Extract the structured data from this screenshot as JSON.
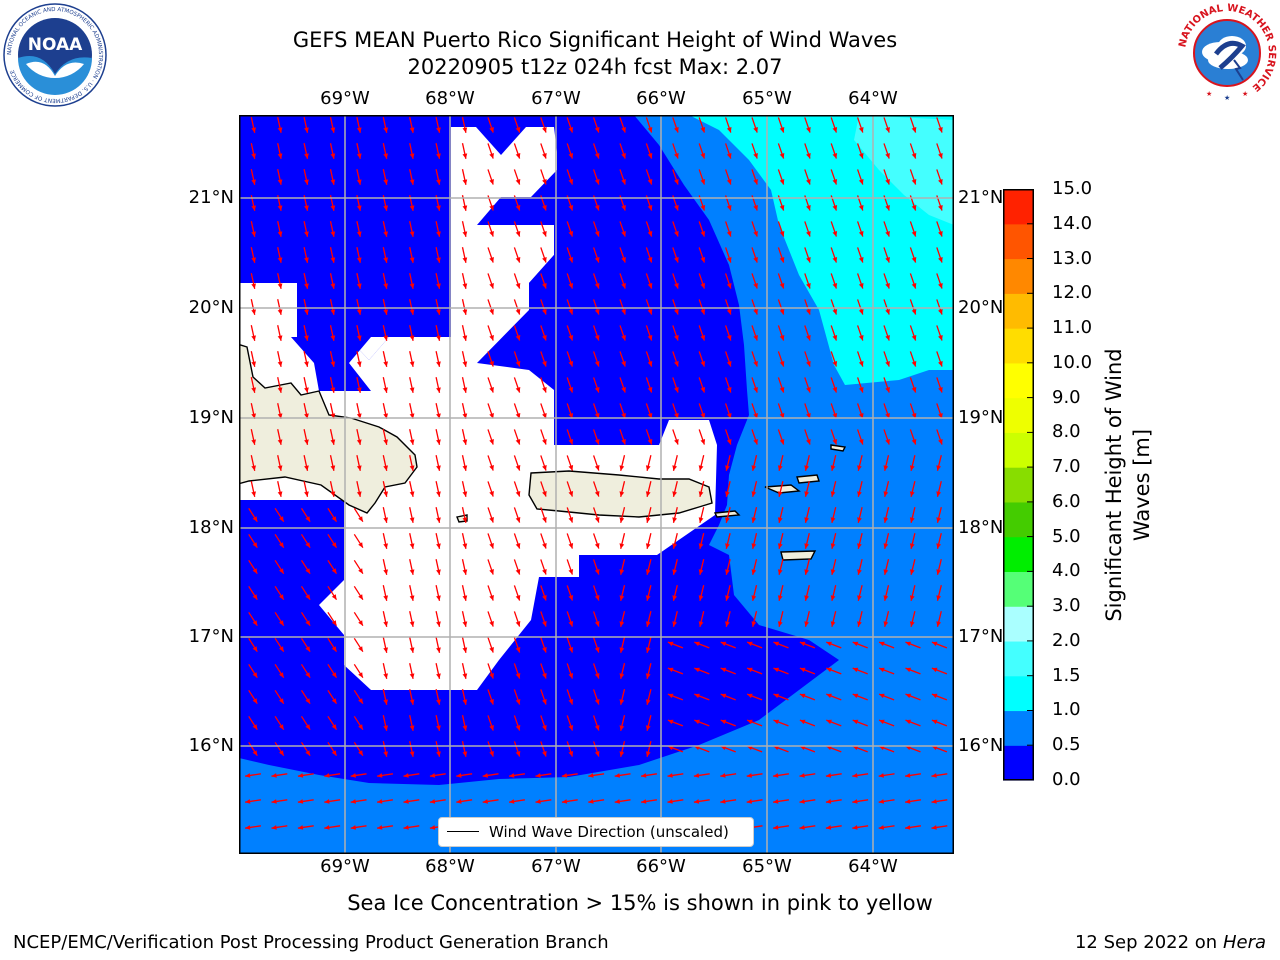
{
  "header": {
    "title_line1": "GEFS MEAN Puerto Rico Significant Height of Wind Waves",
    "title_line2": "20220905 t12z 024h fcst   Max: 2.07"
  },
  "logos": {
    "left": {
      "name": "noaa-logo",
      "text": "NOAA",
      "ring_text": "NATIONAL OCEANIC AND ATMOSPHERIC ADMINISTRATION · U.S. DEPARTMENT OF COMMERCE"
    },
    "right": {
      "name": "nws-logo",
      "ring_text": "NATIONAL WEATHER SERVICE"
    }
  },
  "map": {
    "lon_ticks": [
      "69°W",
      "68°W",
      "67°W",
      "66°W",
      "65°W",
      "64°W"
    ],
    "lat_ticks": [
      "21°N",
      "20°N",
      "19°N",
      "18°N",
      "17°N",
      "16°N"
    ],
    "region": "Puerto Rico",
    "colors": {
      "band_0_0.5": "#0000ff",
      "band_0.5_1.0": "#0080ff",
      "band_1.0_1.5": "#00ffff",
      "band_1.5_2.0": "#44ffff",
      "no_data": "#ffffff",
      "land": "#efeedd",
      "arrows": "#ff0000",
      "grid": "#b0b0b0"
    },
    "legend": {
      "label": "Wind Wave Direction (unscaled)"
    }
  },
  "colorbar": {
    "label": "Significant Height of Wind Waves [m]",
    "ticks": [
      "0.0",
      "0.5",
      "1.0",
      "1.5",
      "2.0",
      "3.0",
      "4.0",
      "5.0",
      "6.0",
      "7.0",
      "8.0",
      "9.0",
      "10.0",
      "11.0",
      "12.0",
      "13.0",
      "14.0",
      "15.0"
    ],
    "colors": [
      "#0000ff",
      "#0080ff",
      "#00ffff",
      "#44ffff",
      "#aaffff",
      "#55ff77",
      "#00ee00",
      "#44cc00",
      "#88dd00",
      "#ccff00",
      "#eeff00",
      "#ffff00",
      "#ffdd00",
      "#ffbb00",
      "#ff8800",
      "#ff5500",
      "#ff2200",
      "#ff0000"
    ]
  },
  "footer": {
    "note": "Sea Ice Concentration > 15% is shown in pink to yellow",
    "credit_left": "NCEP/EMC/Verification Post Processing Product Generation Branch",
    "credit_date": "12 Sep 2022 on",
    "credit_host": "Hera"
  }
}
